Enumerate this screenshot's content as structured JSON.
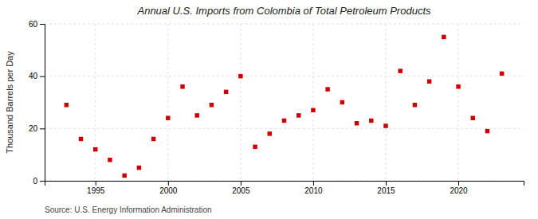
{
  "chart_data": {
    "type": "scatter",
    "title": "Annual U.S. Imports from Colombia of Total Petroleum Products",
    "y_label": "Thousand Barrels per Day",
    "annotations": [
      "Source: U.S. Energy Information Administration"
    ],
    "x": [
      1993,
      1994,
      1995,
      1996,
      1997,
      1998,
      1999,
      2000,
      2001,
      2002,
      2003,
      2004,
      2005,
      2006,
      2007,
      2008,
      2009,
      2010,
      2011,
      2012,
      2013,
      2014,
      2015,
      2016,
      2017,
      2018,
      2019,
      2020,
      2021,
      2022,
      2023
    ],
    "values": [
      29,
      16,
      12,
      8,
      2,
      5,
      16,
      24,
      36,
      25,
      29,
      34,
      40,
      13,
      18,
      23,
      25,
      27,
      35,
      30,
      22,
      23,
      21,
      42,
      29,
      38,
      55,
      36,
      24,
      19,
      41
    ],
    "color": "#cc0000",
    "marker": "square",
    "xlim": [
      1991.5,
      2024.5
    ],
    "xticks": [
      1995,
      2000,
      2005,
      2010,
      2015,
      2020
    ],
    "ylim": [
      0,
      60
    ],
    "yticks": [
      0,
      20,
      40,
      60
    ],
    "grid": true
  }
}
